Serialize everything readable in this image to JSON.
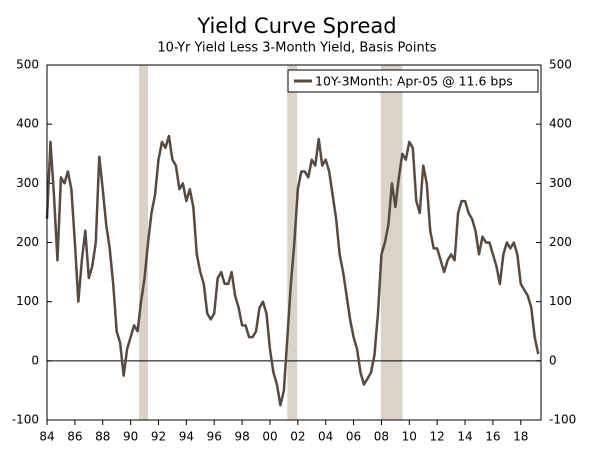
{
  "chart_data": {
    "type": "line",
    "title": "Yield Curve Spread",
    "subtitle": "10-Yr Yield Less 3-Month Yield, Basis Points",
    "x": [
      1984.0,
      1984.25,
      1984.5,
      1984.75,
      1985.0,
      1985.25,
      1985.5,
      1985.75,
      1986.0,
      1986.25,
      1986.5,
      1986.75,
      1987.0,
      1987.25,
      1987.5,
      1987.75,
      1988.0,
      1988.25,
      1988.5,
      1988.75,
      1989.0,
      1989.25,
      1989.5,
      1989.75,
      1990.0,
      1990.25,
      1990.5,
      1990.75,
      1991.0,
      1991.25,
      1991.5,
      1991.75,
      1992.0,
      1992.25,
      1992.5,
      1992.75,
      1993.0,
      1993.25,
      1993.5,
      1993.75,
      1994.0,
      1994.25,
      1994.5,
      1994.75,
      1995.0,
      1995.25,
      1995.5,
      1995.75,
      1996.0,
      1996.25,
      1996.5,
      1996.75,
      1997.0,
      1997.25,
      1997.5,
      1997.75,
      1998.0,
      1998.25,
      1998.5,
      1998.75,
      1999.0,
      1999.25,
      1999.5,
      1999.75,
      2000.0,
      2000.25,
      2000.5,
      2000.75,
      2001.0,
      2001.25,
      2001.5,
      2001.75,
      2002.0,
      2002.25,
      2002.5,
      2002.75,
      2003.0,
      2003.25,
      2003.5,
      2003.75,
      2004.0,
      2004.25,
      2004.5,
      2004.75,
      2005.0,
      2005.25,
      2005.5,
      2005.75,
      2006.0,
      2006.25,
      2006.5,
      2006.75,
      2007.0,
      2007.25,
      2007.5,
      2007.75,
      2008.0,
      2008.25,
      2008.5,
      2008.75,
      2009.0,
      2009.25,
      2009.5,
      2009.75,
      2010.0,
      2010.25,
      2010.5,
      2010.75,
      2011.0,
      2011.25,
      2011.5,
      2011.75,
      2012.0,
      2012.25,
      2012.5,
      2012.75,
      2013.0,
      2013.25,
      2013.5,
      2013.75,
      2014.0,
      2014.25,
      2014.5,
      2014.75,
      2015.0,
      2015.25,
      2015.5,
      2015.75,
      2016.0,
      2016.25,
      2016.5,
      2016.75,
      2017.0,
      2017.25,
      2017.5,
      2017.75,
      2018.0,
      2018.25,
      2018.5,
      2018.75,
      2019.0,
      2019.25
    ],
    "series": [
      {
        "name": "10Y-3Month: Apr-05 @ 11.6 bps",
        "color": "#574a42",
        "values": [
          240,
          370,
          280,
          170,
          310,
          300,
          320,
          290,
          200,
          100,
          170,
          220,
          140,
          160,
          200,
          345,
          290,
          230,
          190,
          130,
          50,
          30,
          -25,
          20,
          40,
          60,
          50,
          100,
          140,
          200,
          250,
          280,
          340,
          370,
          360,
          380,
          340,
          330,
          290,
          300,
          270,
          290,
          260,
          180,
          150,
          130,
          80,
          70,
          80,
          140,
          150,
          130,
          130,
          150,
          110,
          90,
          60,
          60,
          40,
          40,
          50,
          90,
          100,
          80,
          20,
          -20,
          -40,
          -75,
          -50,
          40,
          130,
          200,
          290,
          320,
          320,
          310,
          340,
          330,
          375,
          330,
          340,
          320,
          280,
          240,
          180,
          150,
          110,
          70,
          40,
          20,
          -20,
          -40,
          -30,
          -20,
          10,
          80,
          180,
          200,
          230,
          300,
          260,
          310,
          350,
          340,
          370,
          360,
          270,
          250,
          330,
          300,
          220,
          190,
          190,
          170,
          150,
          170,
          180,
          170,
          250,
          270,
          270,
          250,
          240,
          220,
          180,
          210,
          200,
          200,
          180,
          160,
          130,
          180,
          200,
          190,
          200,
          180,
          130,
          120,
          110,
          90,
          40,
          11.6
        ]
      }
    ],
    "shaded_ranges": [
      [
        1990.6,
        1991.25
      ],
      [
        2001.25,
        2001.95
      ],
      [
        2007.95,
        2009.5
      ]
    ],
    "shade_color": "#d9d4c7",
    "xlim": [
      1984,
      2019.45
    ],
    "xticks": [
      {
        "value": 1984,
        "label": "84"
      },
      {
        "value": 1986,
        "label": "86"
      },
      {
        "value": 1988,
        "label": "88"
      },
      {
        "value": 1990,
        "label": "90"
      },
      {
        "value": 1992,
        "label": "92"
      },
      {
        "value": 1994,
        "label": "94"
      },
      {
        "value": 1996,
        "label": "96"
      },
      {
        "value": 1998,
        "label": "98"
      },
      {
        "value": 2000,
        "label": "00"
      },
      {
        "value": 2002,
        "label": "02"
      },
      {
        "value": 2004,
        "label": "04"
      },
      {
        "value": 2006,
        "label": "06"
      },
      {
        "value": 2008,
        "label": "08"
      },
      {
        "value": 2010,
        "label": "10"
      },
      {
        "value": 2012,
        "label": "12"
      },
      {
        "value": 2014,
        "label": "14"
      },
      {
        "value": 2016,
        "label": "16"
      },
      {
        "value": 2018,
        "label": "18"
      }
    ],
    "ylim": [
      -100,
      500
    ],
    "yticks": [
      -100,
      0,
      100,
      200,
      300,
      400,
      500
    ],
    "y2lim": [
      -100,
      500
    ],
    "y2ticks": [
      -100,
      0,
      100,
      200,
      300,
      400,
      500
    ],
    "legend": "top-right"
  }
}
